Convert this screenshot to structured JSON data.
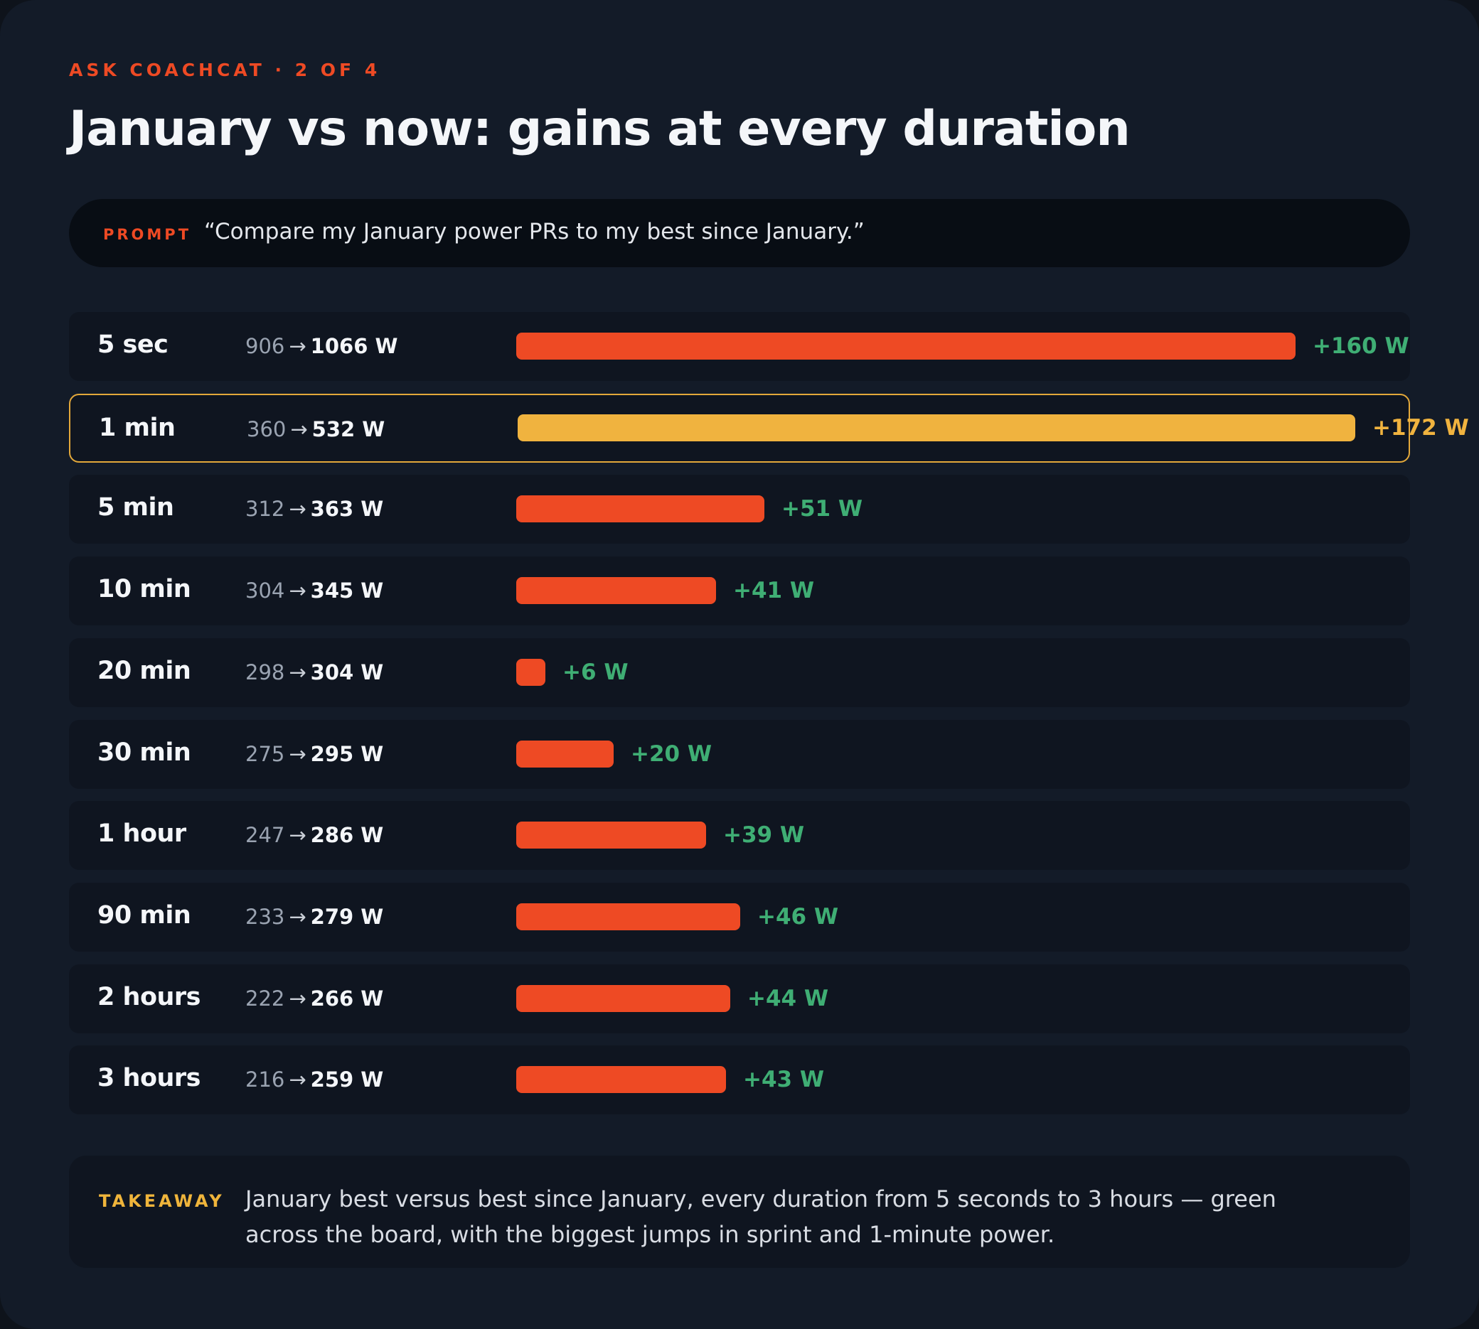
{
  "header": {
    "eyebrow": "ASK COACHCAT · 2 OF 4",
    "title": "January vs now: gains at every duration"
  },
  "prompt": {
    "label": "PROMPT",
    "text": "“Compare my January power PRs to my best since January.”"
  },
  "colors": {
    "bar": "#ee4a24",
    "highlight_bar": "#f0b33f",
    "gain": "#3fae74",
    "highlight_gain": "#f0b33f"
  },
  "chart_data": {
    "type": "bar",
    "orientation": "horizontal",
    "categories": [
      "5 sec",
      "1 min",
      "5 min",
      "10 min",
      "20 min",
      "30 min",
      "1 hour",
      "90 min",
      "2 hours",
      "3 hours"
    ],
    "series": [
      {
        "name": "January",
        "values": [
          906,
          360,
          312,
          304,
          298,
          275,
          247,
          233,
          222,
          216
        ]
      },
      {
        "name": "Now",
        "values": [
          1066,
          532,
          363,
          345,
          304,
          295,
          286,
          279,
          266,
          259
        ]
      }
    ],
    "gains": [
      160,
      172,
      51,
      41,
      6,
      20,
      39,
      46,
      44,
      43
    ],
    "gain_labels": [
      "+160 W",
      "+172 W",
      "+51 W",
      "+41 W",
      "+6 W",
      "+20 W",
      "+39 W",
      "+46 W",
      "+44 W",
      "+43 W"
    ],
    "unit": "W",
    "highlight_index": 1,
    "xlim": [
      0,
      172
    ]
  },
  "takeaway": {
    "label": "TAKEAWAY",
    "text": "January best versus best since January, every duration from 5 seconds to 3 hours — green across the board, with the biggest jumps in sprint and 1-minute power."
  }
}
